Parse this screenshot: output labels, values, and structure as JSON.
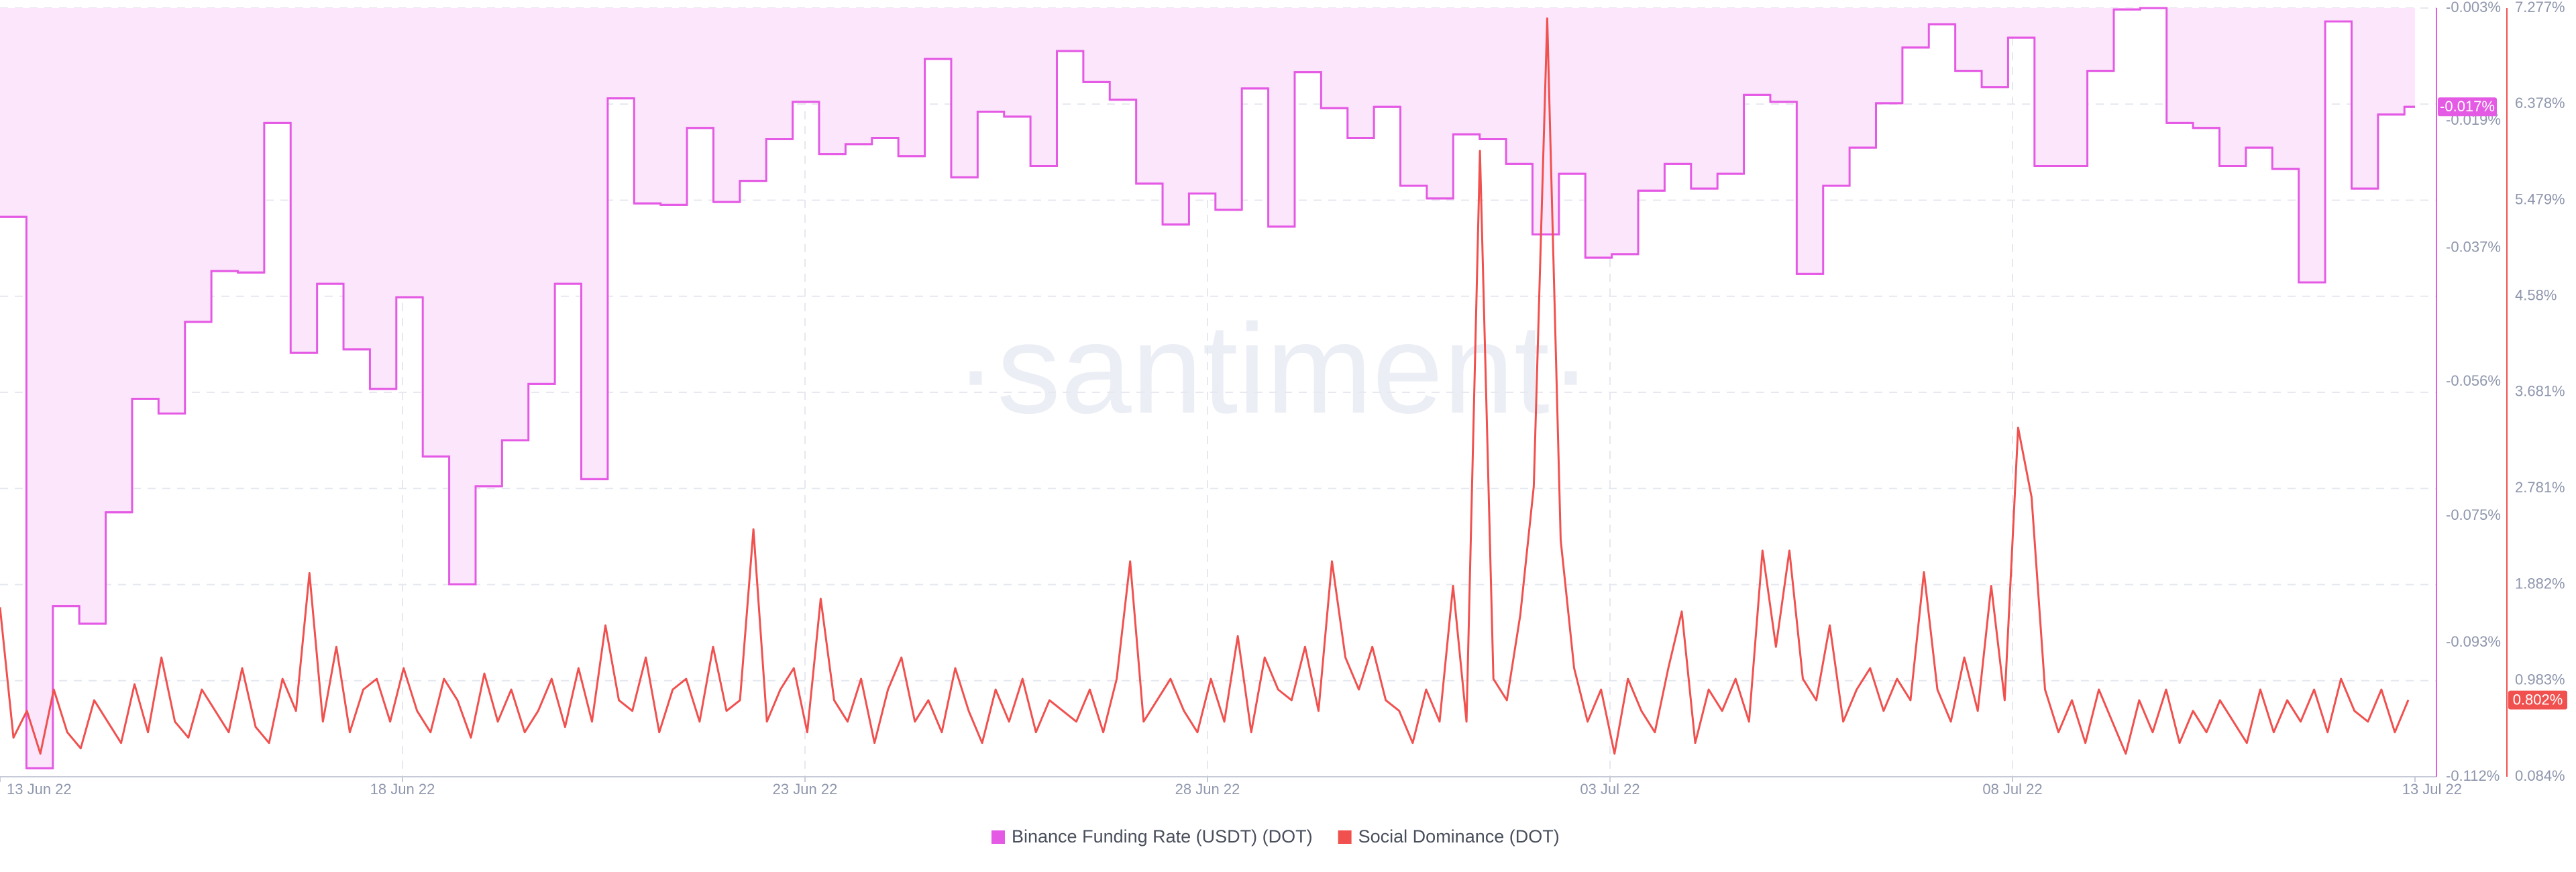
{
  "chart_data": {
    "type": "line",
    "watermark": "·santiment·",
    "xlim": [
      0,
      30
    ],
    "xticks": [
      {
        "value": 0,
        "label": "13 Jun 22"
      },
      {
        "value": 5,
        "label": "18 Jun 22"
      },
      {
        "value": 10,
        "label": "23 Jun 22"
      },
      {
        "value": 15,
        "label": "28 Jun 22"
      },
      {
        "value": 20,
        "label": "03 Jul 22"
      },
      {
        "value": 25,
        "label": "08 Jul 22"
      },
      {
        "value": 30,
        "label": "13 Jul 22"
      }
    ],
    "ylim": [
      -0.112,
      -0.003
    ],
    "yticks": [
      {
        "value": -0.003,
        "label": "-0.003%"
      },
      {
        "value": -0.019,
        "label": "-0.019%"
      },
      {
        "value": -0.037,
        "label": "-0.037%"
      },
      {
        "value": -0.056,
        "label": "-0.056%"
      },
      {
        "value": -0.075,
        "label": "-0.075%"
      },
      {
        "value": -0.093,
        "label": "-0.093%"
      },
      {
        "value": -0.112,
        "label": "-0.112%"
      }
    ],
    "y2lim": [
      0.084,
      7.277
    ],
    "y2ticks": [
      {
        "value": 0.084,
        "label": "0.084%"
      },
      {
        "value": 0.983,
        "label": "0.983%"
      },
      {
        "value": 1.882,
        "label": "1.882%"
      },
      {
        "value": 2.781,
        "label": "2.781%"
      },
      {
        "value": 3.681,
        "label": "3.681%"
      },
      {
        "value": 4.58,
        "label": "4.58%"
      },
      {
        "value": 5.479,
        "label": "5.479%"
      },
      {
        "value": 6.378,
        "label": "6.378%"
      },
      {
        "value": 7.277,
        "label": "7.277%"
      }
    ],
    "grid": true,
    "series": [
      {
        "name": "Binance Funding Rate (USDT) (DOT)",
        "color": "#e45ae4",
        "fill": "#fce6fc",
        "step": true,
        "badge": "-0.017%",
        "values": [
          -0.0326,
          -0.1108,
          -0.0878,
          -0.0903,
          -0.0745,
          -0.0584,
          -0.0605,
          -0.0475,
          -0.0403,
          -0.0405,
          -0.0193,
          -0.0519,
          -0.0421,
          -0.0514,
          -0.057,
          -0.044,
          -0.0666,
          -0.0847,
          -0.0708,
          -0.0643,
          -0.0563,
          -0.0421,
          -0.0698,
          -0.0158,
          -0.0307,
          -0.0309,
          -0.02,
          -0.0305,
          -0.0275,
          -0.0216,
          -0.0163,
          -0.0237,
          -0.0223,
          -0.0214,
          -0.024,
          -0.0102,
          -0.027,
          -0.0177,
          -0.0184,
          -0.0254,
          -0.0091,
          -0.0135,
          -0.016,
          -0.0279,
          -0.0337,
          -0.0293,
          -0.0316,
          -0.0144,
          -0.034,
          -0.0121,
          -0.0172,
          -0.0214,
          -0.017,
          -0.0282,
          -0.03,
          -0.0209,
          -0.0216,
          -0.0251,
          -0.0351,
          -0.0265,
          -0.0384,
          -0.0379,
          -0.0289,
          -0.0251,
          -0.0286,
          -0.0265,
          -0.0153,
          -0.0163,
          -0.0407,
          -0.0282,
          -0.0228,
          -0.0165,
          -0.0086,
          -0.0053,
          -0.0119,
          -0.0142,
          -0.0072,
          -0.0254,
          -0.0254,
          -0.0119,
          -0.0032,
          -0.003,
          -0.0193,
          -0.02,
          -0.0254,
          -0.0228,
          -0.0258,
          -0.0419,
          -0.0049,
          -0.0286,
          -0.0181,
          -0.017
        ]
      },
      {
        "name": "Social Dominance (DOT)",
        "color": "#f0514f",
        "axis": "y2",
        "badge": "0.802%",
        "values": [
          1.67,
          0.45,
          0.7,
          0.3,
          0.9,
          0.5,
          0.35,
          0.8,
          0.6,
          0.4,
          0.95,
          0.5,
          1.2,
          0.6,
          0.45,
          0.9,
          0.7,
          0.5,
          1.1,
          0.55,
          0.4,
          1.0,
          0.7,
          1.99,
          0.6,
          1.3,
          0.5,
          0.9,
          1.0,
          0.6,
          1.1,
          0.7,
          0.5,
          1.0,
          0.8,
          0.45,
          1.05,
          0.6,
          0.9,
          0.5,
          0.7,
          1.0,
          0.55,
          1.1,
          0.6,
          1.5,
          0.8,
          0.7,
          1.2,
          0.5,
          0.9,
          1.0,
          0.6,
          1.3,
          0.7,
          0.8,
          2.4,
          0.6,
          0.9,
          1.1,
          0.5,
          1.75,
          0.8,
          0.6,
          1.0,
          0.4,
          0.9,
          1.2,
          0.6,
          0.8,
          0.5,
          1.1,
          0.7,
          0.4,
          0.9,
          0.6,
          1.0,
          0.5,
          0.8,
          0.7,
          0.6,
          0.9,
          0.5,
          1.0,
          2.1,
          0.6,
          0.8,
          1.0,
          0.7,
          0.5,
          1.0,
          0.6,
          1.4,
          0.5,
          1.2,
          0.9,
          0.8,
          1.3,
          0.7,
          2.1,
          1.2,
          0.9,
          1.3,
          0.8,
          0.7,
          0.4,
          0.9,
          0.6,
          1.87,
          0.6,
          5.94,
          1.0,
          0.8,
          1.6,
          2.8,
          7.18,
          2.3,
          1.1,
          0.6,
          0.9,
          0.3,
          1.0,
          0.7,
          0.5,
          1.1,
          1.63,
          0.4,
          0.9,
          0.7,
          1.0,
          0.6,
          2.2,
          1.3,
          2.2,
          1.0,
          0.8,
          1.5,
          0.6,
          0.9,
          1.1,
          0.7,
          1.0,
          0.8,
          2.0,
          0.9,
          0.6,
          1.2,
          0.7,
          1.87,
          0.8,
          3.35,
          2.7,
          0.9,
          0.5,
          0.8,
          0.4,
          0.9,
          0.6,
          0.3,
          0.8,
          0.5,
          0.9,
          0.4,
          0.7,
          0.5,
          0.8,
          0.6,
          0.4,
          0.9,
          0.5,
          0.8,
          0.6,
          0.9,
          0.5,
          1.0,
          0.7,
          0.6,
          0.9,
          0.5,
          0.802
        ]
      }
    ]
  }
}
